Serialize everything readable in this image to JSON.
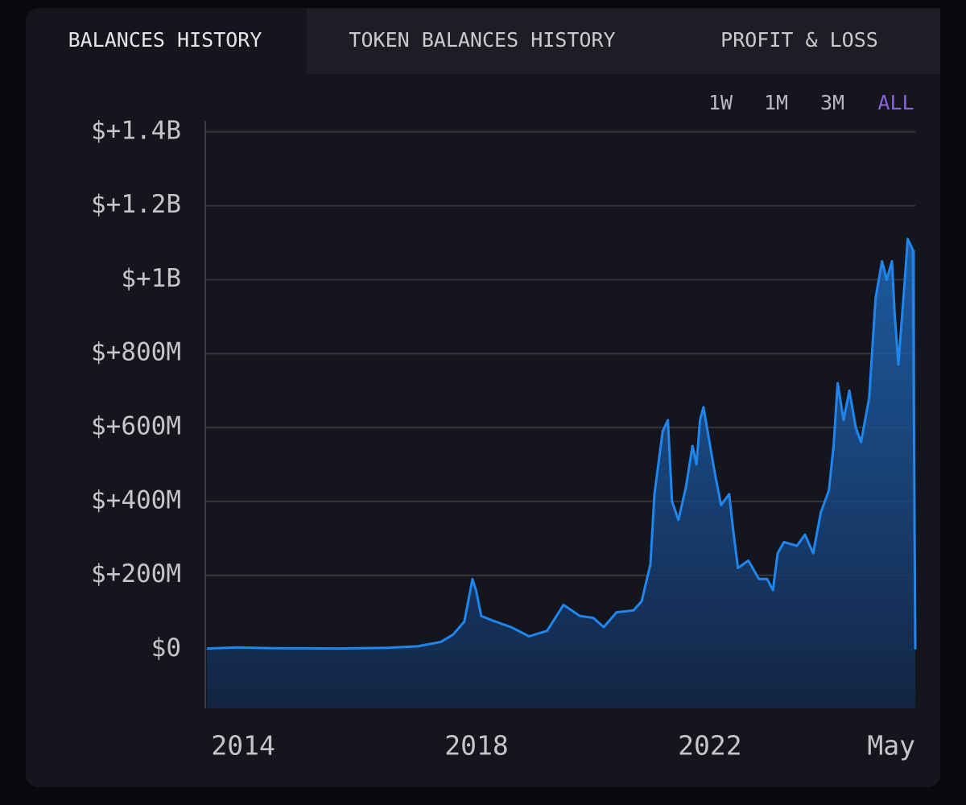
{
  "tabs": [
    "BALANCES HISTORY",
    "TOKEN BALANCES HISTORY",
    "PROFIT & LOSS"
  ],
  "ranges": [
    "1W",
    "1M",
    "3M",
    "ALL"
  ],
  "chart_data": {
    "type": "area",
    "color": "#1f86ee",
    "grid": true,
    "ylim": [
      -160000000,
      1430000000
    ],
    "yticks": [
      {
        "value": 0,
        "label": "$0"
      },
      {
        "value": 200000000,
        "label": "$+200M"
      },
      {
        "value": 400000000,
        "label": "$+400M"
      },
      {
        "value": 600000000,
        "label": "$+600M"
      },
      {
        "value": 800000000,
        "label": "$+800M"
      },
      {
        "value": 1000000000,
        "label": "$+1B"
      },
      {
        "value": 1200000000,
        "label": "$+1.2B"
      },
      {
        "value": 1400000000,
        "label": "$+1.4B"
      }
    ],
    "xlim": [
      2013.35,
      2025.52
    ],
    "xticks": [
      2014,
      2018,
      2022,
      {
        "value": 2025.33,
        "label": "May"
      }
    ],
    "x": [
      2013.38,
      2013.9,
      2014.52,
      2015.63,
      2016.46,
      2016.99,
      2017.39,
      2017.6,
      2017.79,
      2017.93,
      2017.99,
      2018.08,
      2018.32,
      2018.59,
      2018.9,
      2019.21,
      2019.49,
      2019.77,
      2020.0,
      2020.18,
      2020.4,
      2020.69,
      2020.83,
      2020.98,
      2021.05,
      2021.19,
      2021.28,
      2021.35,
      2021.46,
      2021.59,
      2021.7,
      2021.77,
      2021.83,
      2021.89,
      2022.08,
      2022.19,
      2022.33,
      2022.4,
      2022.48,
      2022.66,
      2022.84,
      2022.98,
      2023.08,
      2023.16,
      2023.27,
      2023.49,
      2023.63,
      2023.77,
      2023.9,
      2024.04,
      2024.12,
      2024.19,
      2024.29,
      2024.39,
      2024.5,
      2024.59,
      2024.73,
      2024.84,
      2024.95,
      2025.03,
      2025.12,
      2025.17,
      2025.23,
      2025.34,
      2025.39,
      2025.48
    ],
    "values": [
      2000000,
      5000000,
      3000000,
      2000000,
      4000000,
      8000000,
      20000000,
      40000000,
      75000000,
      190000000,
      160000000,
      90000000,
      75000000,
      60000000,
      35000000,
      50000000,
      120000000,
      90000000,
      85000000,
      60000000,
      100000000,
      105000000,
      130000000,
      230000000,
      420000000,
      590000000,
      620000000,
      400000000,
      350000000,
      440000000,
      550000000,
      500000000,
      620000000,
      655000000,
      480000000,
      390000000,
      420000000,
      320000000,
      220000000,
      240000000,
      190000000,
      190000000,
      160000000,
      260000000,
      290000000,
      280000000,
      310000000,
      260000000,
      370000000,
      430000000,
      550000000,
      720000000,
      620000000,
      700000000,
      600000000,
      560000000,
      680000000,
      950000000,
      1050000000,
      1000000000,
      1050000000,
      900000000,
      770000000,
      1000000000,
      1110000000,
      1080000000
    ]
  }
}
